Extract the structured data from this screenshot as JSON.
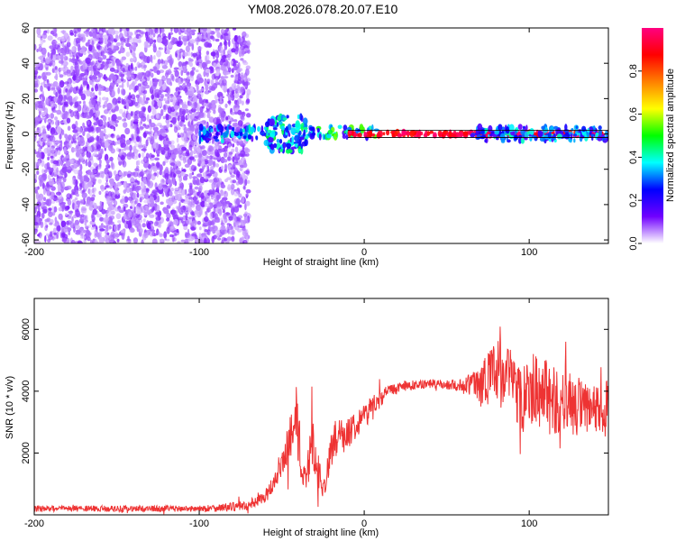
{
  "figure_title": "YM08.2026.078.20.07.E10",
  "chart_data": [
    {
      "type": "heatmap",
      "xlabel": "Height of straight line (km)",
      "ylabel": "Frequency (Hz)",
      "xlim": [
        -200,
        148
      ],
      "ylim": [
        -62,
        60
      ],
      "xticks": [
        -200,
        -100,
        0,
        100
      ],
      "xtick_labels": [
        "-200",
        "-100",
        "0",
        "100"
      ],
      "yticks": [
        -60,
        -40,
        -20,
        0,
        20,
        40,
        60
      ],
      "ytick_labels": [
        "-60",
        "-40",
        "-20",
        "0",
        "20",
        "40",
        "60"
      ],
      "colorbar": {
        "label": "Normalized spectral amplitude",
        "range": [
          0,
          1
        ],
        "ticks": [
          0.0,
          0.2,
          0.4,
          0.6,
          0.8
        ],
        "tick_labels": [
          "0.0",
          "0.2",
          "0.4",
          "0.6",
          "0.8"
        ],
        "colormap": [
          "#ffffff",
          "#7000ff",
          "#0000ff",
          "#00ffff",
          "#00ff00",
          "#ffff00",
          "#ff8000",
          "#ff0000",
          "#ff0080"
        ]
      },
      "regions": [
        {
          "x": [
            -200,
            -70
          ],
          "f": [
            -62,
            60
          ],
          "amplitude": 0.08,
          "description_values": "broadband noise"
        },
        {
          "x": [
            -100,
            -60
          ],
          "f": [
            -4,
            4
          ],
          "amplitude": 0.3
        },
        {
          "x": [
            -60,
            -35
          ],
          "f": [
            -10,
            10
          ],
          "amplitude": 0.35
        },
        {
          "x": [
            -35,
            8
          ],
          "f": [
            -2,
            4
          ],
          "amplitude": 0.4
        },
        {
          "x": [
            -10,
            148
          ],
          "f": [
            -1,
            1
          ],
          "amplitude": 0.95
        },
        {
          "x": [
            65,
            148
          ],
          "f": [
            -4,
            4
          ],
          "amplitude": 0.3
        }
      ]
    },
    {
      "type": "line",
      "xlabel": "Height of straight line (km)",
      "ylabel": "SNR (10 * v/v)",
      "xlim": [
        -200,
        148
      ],
      "ylim": [
        0,
        7000
      ],
      "xticks": [
        -200,
        -100,
        0,
        100
      ],
      "xtick_labels": [
        "-200",
        "-100",
        "0",
        "100"
      ],
      "yticks": [
        2000,
        4000,
        6000
      ],
      "ytick_labels": [
        "2000",
        "4000",
        "6000"
      ],
      "series": [
        {
          "color": "#ee3333",
          "x": [
            -200,
            -180,
            -160,
            -140,
            -120,
            -100,
            -80,
            -70,
            -60,
            -55,
            -50,
            -45,
            -42,
            -40,
            -38,
            -35,
            -32,
            -30,
            -28,
            -25,
            -22,
            -20,
            -18,
            -15,
            -10,
            -5,
            0,
            5,
            10,
            15,
            20,
            30,
            40,
            50,
            60,
            70,
            75,
            80,
            85,
            90,
            95,
            100,
            105,
            110,
            115,
            120,
            125,
            130,
            135,
            140,
            145,
            148
          ],
          "values": [
            200,
            200,
            200,
            200,
            200,
            200,
            250,
            300,
            600,
            1000,
            1500,
            2500,
            3500,
            2500,
            1500,
            1000,
            2500,
            2000,
            1500,
            800,
            1500,
            2000,
            2500,
            2500,
            2600,
            3000,
            3200,
            3500,
            3800,
            4000,
            4100,
            4200,
            4250,
            4200,
            4200,
            4250,
            4500,
            4600,
            4500,
            4300,
            3800,
            4200,
            4000,
            4000,
            3700,
            3600,
            3600,
            3500,
            3300,
            3400,
            3200,
            3600
          ],
          "noise": [
            100,
            100,
            100,
            100,
            100,
            100,
            150,
            150,
            200,
            300,
            400,
            900,
            1200,
            1000,
            500,
            400,
            900,
            700,
            600,
            300,
            500,
            600,
            600,
            600,
            500,
            500,
            400,
            400,
            300,
            200,
            200,
            150,
            150,
            150,
            200,
            600,
            1000,
            1100,
            1100,
            1100,
            1100,
            1200,
            1200,
            1100,
            1100,
            1000,
            1000,
            1000,
            900,
            900,
            900,
            900
          ]
        }
      ]
    }
  ]
}
